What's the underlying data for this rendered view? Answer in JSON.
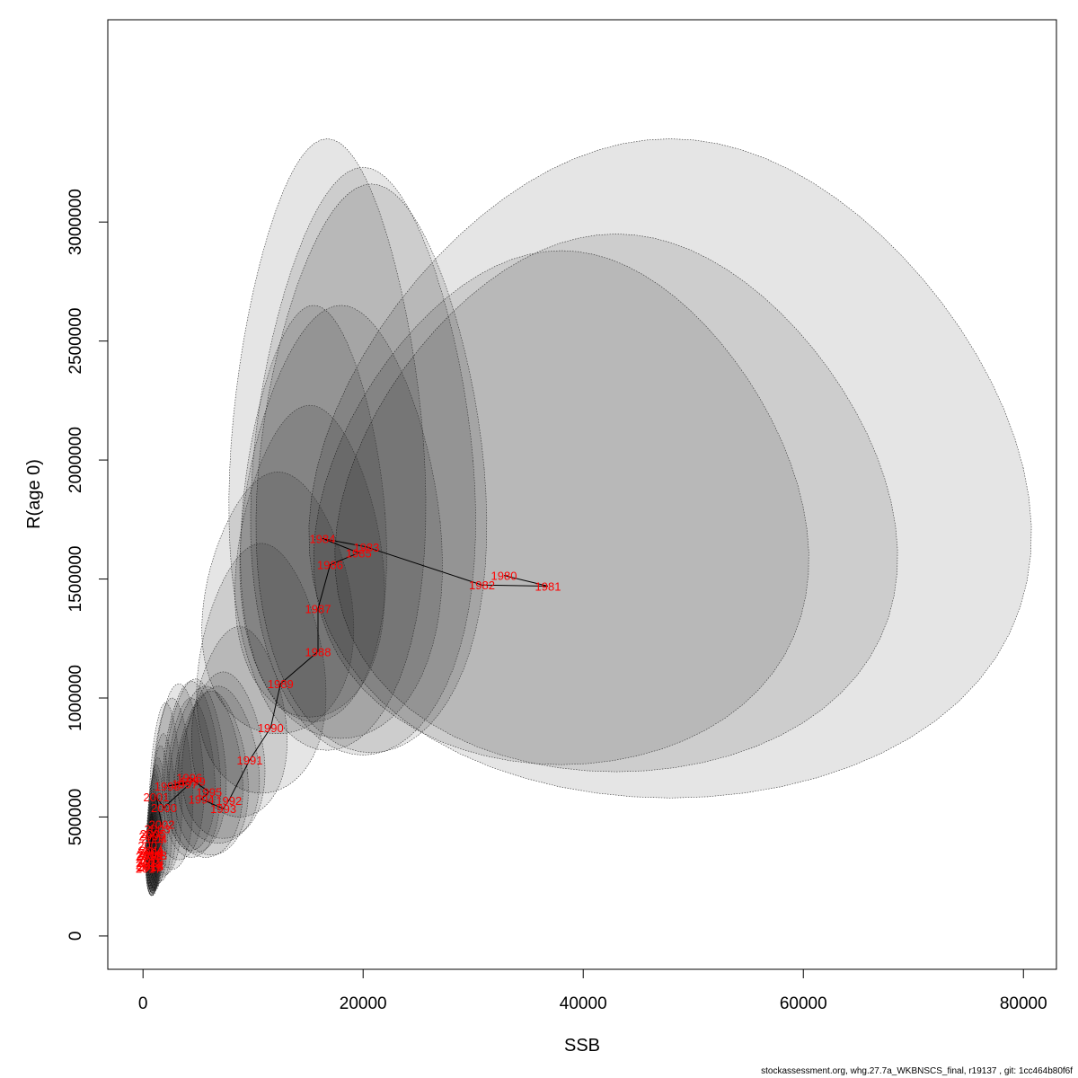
{
  "footer": "stockassessment.org, whg.27.7a_WKBNSCS_final, r19137 , git: 1cc464b80f6f",
  "chart_data": {
    "type": "scatter",
    "xlabel": "SSB",
    "ylabel": "R(age 0)",
    "xlim": [
      -3200,
      83000
    ],
    "ylim": [
      -140000,
      3850000
    ],
    "xticks": [
      0,
      20000,
      40000,
      60000,
      80000
    ],
    "yticks": [
      0,
      500000,
      1000000,
      1500000,
      2000000,
      2500000,
      3000000
    ],
    "point_color": "#ff0000",
    "path_color": "#000000",
    "ellipse_fill": "rgba(0,0,0,0.10)",
    "points": [
      {
        "year": "1980",
        "ssb": 32800,
        "r": 1515000,
        "e": [
          15800,
          80000,
          580000,
          3350000
        ]
      },
      {
        "year": "1981",
        "ssb": 36800,
        "r": 1470000,
        "e": [
          18000,
          68000,
          690000,
          2950000
        ]
      },
      {
        "year": "1982",
        "ssb": 30800,
        "r": 1475000,
        "e": [
          16000,
          60000,
          720000,
          2880000
        ]
      },
      {
        "year": "1983",
        "ssb": 20300,
        "r": 1635000,
        "e": [
          10500,
          31000,
          770000,
          3160000
        ]
      },
      {
        "year": "1984",
        "ssb": 16300,
        "r": 1670000,
        "e": [
          8000,
          25500,
          780000,
          3350000
        ]
      },
      {
        "year": "1985",
        "ssb": 19600,
        "r": 1610000,
        "e": [
          10000,
          30000,
          760000,
          3230000
        ]
      },
      {
        "year": "1986",
        "ssb": 17000,
        "r": 1560000,
        "e": [
          9000,
          27000,
          830000,
          2650000
        ]
      },
      {
        "year": "1987",
        "ssb": 15900,
        "r": 1375000,
        "e": [
          9000,
          22000,
          900000,
          2650000
        ]
      },
      {
        "year": "1988",
        "ssb": 15900,
        "r": 1195000,
        "e": [
          8500,
          21800,
          920000,
          2230000
        ]
      },
      {
        "year": "1989",
        "ssb": 12500,
        "r": 1060000,
        "e": [
          5500,
          19000,
          850000,
          1950000
        ]
      },
      {
        "year": "1990",
        "ssb": 11600,
        "r": 875000,
        "e": [
          5000,
          16500,
          600000,
          1650000
        ]
      },
      {
        "year": "1991",
        "ssb": 9700,
        "r": 740000,
        "e": [
          4500,
          13000,
          500000,
          1300000
        ]
      },
      {
        "year": "1992",
        "ssb": 7800,
        "r": 570000,
        "e": [
          3600,
          11000,
          410000,
          1110000
        ]
      },
      {
        "year": "1993",
        "ssb": 7300,
        "r": 535000,
        "e": [
          3200,
          10500,
          390000,
          1050000
        ]
      },
      {
        "year": "1994",
        "ssb": 5300,
        "r": 575000,
        "e": [
          2400,
          9000,
          330000,
          1050000
        ]
      },
      {
        "year": "1995",
        "ssb": 6000,
        "r": 605000,
        "e": [
          2900,
          9500,
          340000,
          1030000
        ]
      },
      {
        "year": "1996",
        "ssb": 4200,
        "r": 665000,
        "e": [
          2000,
          7500,
          350000,
          1080000
        ]
      },
      {
        "year": "1997",
        "ssb": 3800,
        "r": 640000,
        "e": [
          1800,
          7000,
          330000,
          1070000
        ]
      },
      {
        "year": "1998",
        "ssb": 2200,
        "r": 630000,
        "e": [
          1000,
          5500,
          320000,
          1060000
        ]
      },
      {
        "year": "1999",
        "ssb": 4500,
        "r": 650000,
        "e": [
          2200,
          6500,
          360000,
          1000000
        ]
      },
      {
        "year": "2000",
        "ssb": 1900,
        "r": 540000,
        "e": [
          800,
          4500,
          280000,
          1000000
        ]
      },
      {
        "year": "2001",
        "ssb": 1200,
        "r": 585000,
        "e": [
          600,
          3500,
          260000,
          980000
        ]
      },
      {
        "year": "2002",
        "ssb": 1700,
        "r": 470000,
        "e": [
          700,
          3000,
          250000,
          850000
        ]
      },
      {
        "year": "2003",
        "ssb": 1300,
        "r": 450000,
        "e": [
          600,
          2600,
          230000,
          800000
        ]
      },
      {
        "year": "2004",
        "ssb": 1000,
        "r": 410000,
        "e": [
          500,
          2200,
          220000,
          750000
        ]
      },
      {
        "year": "2005",
        "ssb": 900,
        "r": 430000,
        "e": [
          450,
          2000,
          210000,
          720000
        ]
      },
      {
        "year": "2006",
        "ssb": 800,
        "r": 420000,
        "e": [
          400,
          1800,
          200000,
          700000
        ]
      },
      {
        "year": "2007",
        "ssb": 700,
        "r": 380000,
        "e": [
          350,
          1700,
          200000,
          680000
        ]
      },
      {
        "year": "2008",
        "ssb": 700,
        "r": 350000,
        "e": [
          350,
          1600,
          200000,
          620000
        ]
      },
      {
        "year": "2009",
        "ssb": 600,
        "r": 340000,
        "e": [
          300,
          1500,
          190000,
          600000
        ]
      },
      {
        "year": "2010",
        "ssb": 500,
        "r": 335000,
        "e": [
          300,
          1400,
          190000,
          580000
        ]
      },
      {
        "year": "2011",
        "ssb": 800,
        "r": 360000,
        "e": [
          350,
          1600,
          190000,
          600000
        ]
      },
      {
        "year": "2012",
        "ssb": 600,
        "r": 345000,
        "e": [
          300,
          1500,
          180000,
          580000
        ]
      },
      {
        "year": "2013",
        "ssb": 1000,
        "r": 340000,
        "e": [
          400,
          1700,
          190000,
          600000
        ]
      },
      {
        "year": "2014",
        "ssb": 700,
        "r": 320000,
        "e": [
          300,
          1500,
          180000,
          560000
        ]
      },
      {
        "year": "2015",
        "ssb": 600,
        "r": 310000,
        "e": [
          300,
          1400,
          180000,
          550000
        ]
      },
      {
        "year": "2016",
        "ssb": 500,
        "r": 300000,
        "e": [
          250,
          1300,
          170000,
          540000
        ]
      },
      {
        "year": "2017",
        "ssb": 500,
        "r": 285000,
        "e": [
          250,
          1300,
          170000,
          520000
        ]
      },
      {
        "year": "2018",
        "ssb": 700,
        "r": 295000,
        "e": [
          300,
          1400,
          170000,
          530000
        ]
      },
      {
        "year": "2019",
        "ssb": 600,
        "r": 290000,
        "e": [
          300,
          1300,
          170000,
          520000
        ]
      }
    ]
  }
}
